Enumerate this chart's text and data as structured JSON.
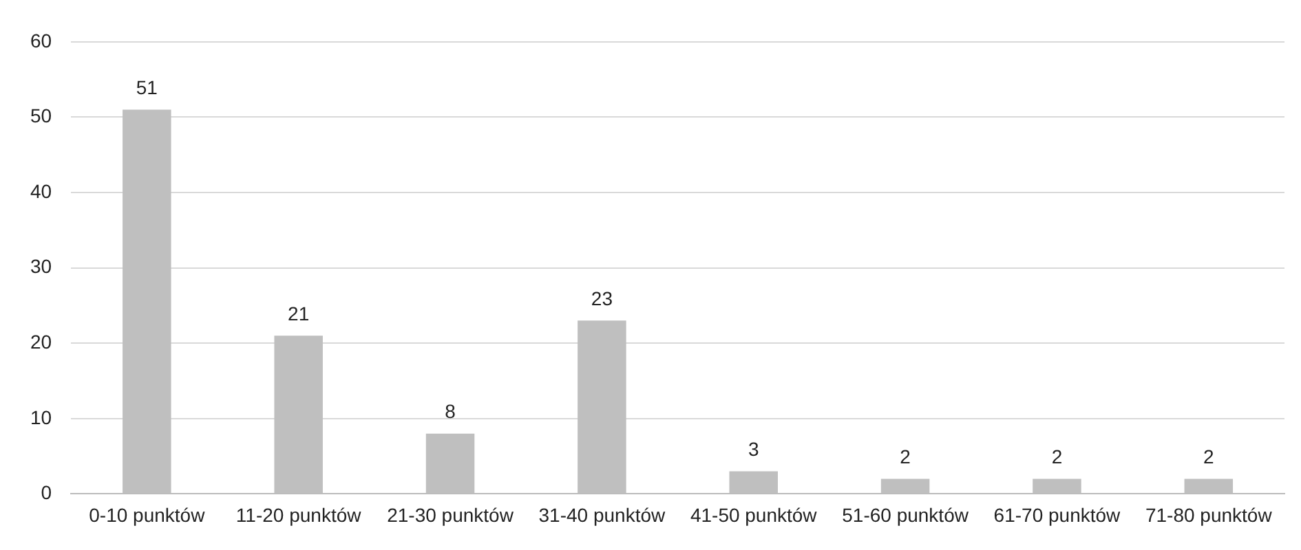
{
  "chart_data": {
    "type": "bar",
    "categories": [
      "0-10 punktów",
      "11-20 punktów",
      "21-30 punktów",
      "31-40 punktów",
      "41-50 punktów",
      "51-60 punktów",
      "61-70 punktów",
      "71-80 punktów"
    ],
    "values": [
      51,
      21,
      8,
      23,
      3,
      2,
      2,
      2
    ],
    "color": "#bfbfbf",
    "ylim": [
      0,
      60
    ],
    "yticks": [
      0,
      10,
      20,
      30,
      40,
      50,
      60
    ],
    "grid": "y",
    "data_labels": true,
    "legend": false
  }
}
